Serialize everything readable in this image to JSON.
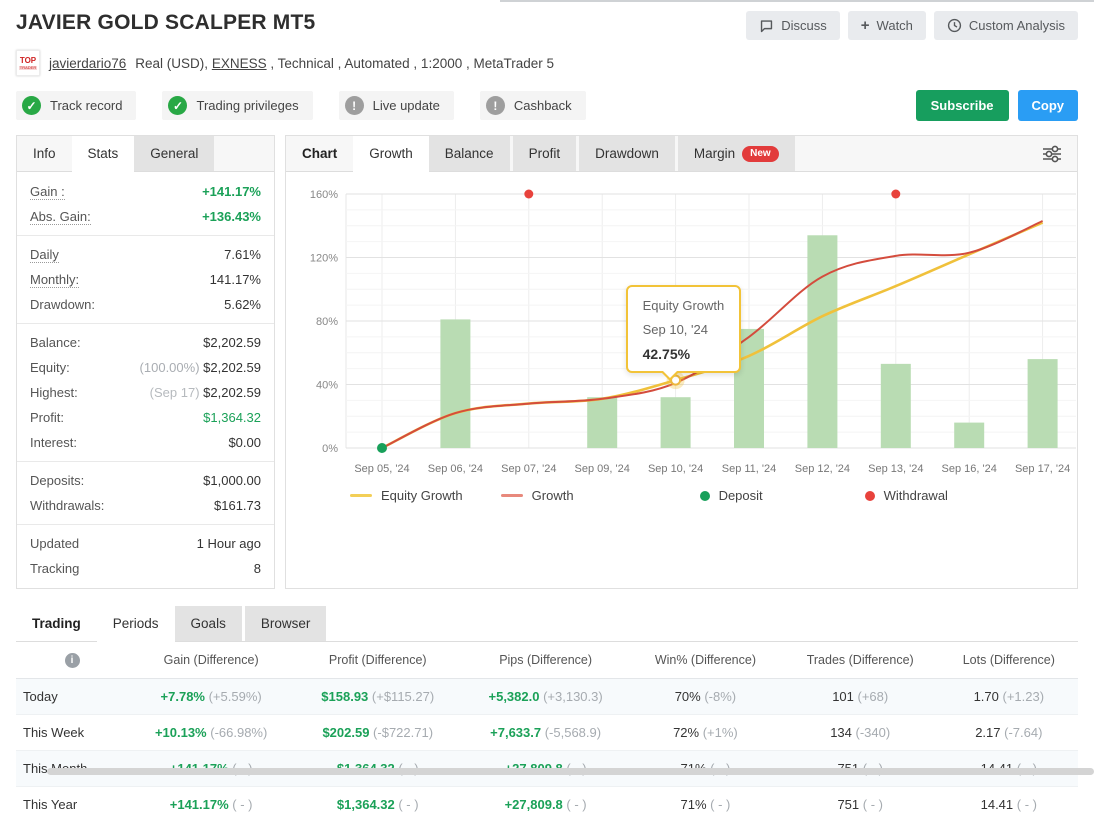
{
  "header": {
    "title": "JAVIER GOLD SCALPER MT5",
    "actions": [
      {
        "label": "Discuss",
        "icon": "discuss-icon"
      },
      {
        "label": "Watch",
        "icon": "plus-icon"
      },
      {
        "label": "Custom Analysis",
        "icon": "clock-icon"
      }
    ],
    "account": {
      "top_badge": "TOP",
      "username": "javierdario76",
      "details_prefix": "Real (USD), ",
      "broker": "EXNESS",
      "details_suffix": " , Technical , Automated , 1:2000 , MetaTrader 5"
    },
    "badges": [
      {
        "label": "Track record",
        "status": "ok"
      },
      {
        "label": "Trading privileges",
        "status": "ok"
      },
      {
        "label": "Live update",
        "status": "info"
      },
      {
        "label": "Cashback",
        "status": "info"
      }
    ],
    "subscribe_label": "Subscribe",
    "copy_label": "Copy"
  },
  "sidebar": {
    "tabs": [
      "Info",
      "Stats",
      "General"
    ],
    "active_tab": "Stats",
    "stats": {
      "gain_label": "Gain :",
      "gain": "+141.17%",
      "abs_gain_label": "Abs. Gain:",
      "abs_gain": "+136.43%",
      "daily_label": "Daily",
      "daily": "7.61%",
      "monthly_label": "Monthly:",
      "monthly": "141.17%",
      "drawdown_label": "Drawdown:",
      "drawdown": "5.62%",
      "balance_label": "Balance:",
      "balance": "$2,202.59",
      "equity_label": "Equity:",
      "equity_prefix": "(100.00%)",
      "equity": "$2,202.59",
      "highest_label": "Highest:",
      "highest_prefix": "(Sep 17)",
      "highest": "$2,202.59",
      "profit_label": "Profit:",
      "profit": "$1,364.32",
      "interest_label": "Interest:",
      "interest": "$0.00",
      "deposits_label": "Deposits:",
      "deposits": "$1,000.00",
      "withdrawals_label": "Withdrawals:",
      "withdrawals": "$161.73",
      "updated_label": "Updated",
      "updated": "1 Hour ago",
      "tracking_label": "Tracking",
      "tracking": "8"
    }
  },
  "chart_panel": {
    "label_tab": "Chart",
    "tabs": [
      "Growth",
      "Balance",
      "Profit",
      "Drawdown",
      "Margin"
    ],
    "active_tab": "Growth",
    "new_badge": "New"
  },
  "chart_data": {
    "type": "line+bar",
    "title": "Growth",
    "x": [
      "Sep 05, '24",
      "Sep 06, '24",
      "Sep 07, '24",
      "Sep 09, '24",
      "Sep 10, '24",
      "Sep 11, '24",
      "Sep 12, '24",
      "Sep 13, '24",
      "Sep 16, '24",
      "Sep 17, '24"
    ],
    "ylim": [
      0,
      160
    ],
    "ytick_step": 40,
    "yminor_step": 10,
    "ytick_suffix": "%",
    "grid": true,
    "legend_position": "bottom",
    "series": [
      {
        "name": "Equity Growth",
        "type": "line",
        "color": "#f0c13b",
        "values": [
          0,
          22,
          28,
          31,
          42.75,
          58,
          83,
          102,
          122,
          142
        ]
      },
      {
        "name": "Growth",
        "type": "line",
        "color": "#d44c3d",
        "values": [
          0,
          22,
          28,
          31,
          41,
          70,
          108,
          121,
          123,
          143
        ]
      },
      {
        "name": "Daily bars",
        "type": "bar",
        "color": "#b9dcb3",
        "values": [
          null,
          81,
          null,
          32,
          32,
          75,
          134,
          53,
          16,
          56
        ]
      },
      {
        "name": "Deposit",
        "type": "points",
        "color": "#18a05a",
        "points": [
          {
            "xi": 0,
            "y": 0
          }
        ]
      },
      {
        "name": "Withdrawal",
        "type": "points",
        "color": "#e8423c",
        "points": [
          {
            "xi": 2,
            "y": 160
          },
          {
            "xi": 7,
            "y": 160
          }
        ]
      }
    ],
    "legend": [
      {
        "label": "Equity Growth",
        "swatch": "line",
        "color": "#f3cf57"
      },
      {
        "label": "Growth",
        "swatch": "line",
        "color": "#e8897c"
      },
      {
        "label": "Deposit",
        "swatch": "dot",
        "color": "#18a05a"
      },
      {
        "label": "Withdrawal",
        "swatch": "dot",
        "color": "#e8423c"
      }
    ],
    "tooltip": {
      "series": "Equity Growth",
      "x": "Sep 10, '24",
      "value": "42.75%",
      "xi": 4,
      "y": 42.75
    }
  },
  "bottom": {
    "label_tab": "Trading",
    "tabs": [
      "Periods",
      "Goals",
      "Browser"
    ],
    "active_tab": "Periods",
    "table": {
      "columns": [
        "Gain (Difference)",
        "Profit (Difference)",
        "Pips (Difference)",
        "Win% (Difference)",
        "Trades (Difference)",
        "Lots (Difference)"
      ],
      "rows": [
        {
          "label": "Today",
          "cells": [
            {
              "main": "+7.78%",
              "diff": "(+5.59%)",
              "green": true
            },
            {
              "main": "$158.93",
              "diff": "(+$115.27)",
              "green": true
            },
            {
              "main": "+5,382.0",
              "diff": "(+3,130.3)",
              "green": true
            },
            {
              "main": "70%",
              "diff": "(-8%)"
            },
            {
              "main": "101",
              "diff": "(+68)"
            },
            {
              "main": "1.70",
              "diff": "(+1.23)"
            }
          ]
        },
        {
          "label": "This Week",
          "cells": [
            {
              "main": "+10.13%",
              "diff": "(-66.98%)",
              "green": true
            },
            {
              "main": "$202.59",
              "diff": "(-$722.71)",
              "green": true
            },
            {
              "main": "+7,633.7",
              "diff": "(-5,568.9)",
              "green": true
            },
            {
              "main": "72%",
              "diff": "(+1%)"
            },
            {
              "main": "134",
              "diff": "(-340)"
            },
            {
              "main": "2.17",
              "diff": "(-7.64)"
            }
          ]
        },
        {
          "label": "This Month",
          "cells": [
            {
              "main": "+141.17%",
              "diff": "( - )",
              "green": true
            },
            {
              "main": "$1,364.32",
              "diff": "( - )",
              "green": true
            },
            {
              "main": "+27,809.8",
              "diff": "( - )",
              "green": true
            },
            {
              "main": "71%",
              "diff": "( - )"
            },
            {
              "main": "751",
              "diff": "( - )"
            },
            {
              "main": "14.41",
              "diff": "( - )"
            }
          ]
        },
        {
          "label": "This Year",
          "cells": [
            {
              "main": "+141.17%",
              "diff": "( - )",
              "green": true
            },
            {
              "main": "$1,364.32",
              "diff": "( - )",
              "green": true
            },
            {
              "main": "+27,809.8",
              "diff": "( - )",
              "green": true
            },
            {
              "main": "71%",
              "diff": "( - )"
            },
            {
              "main": "751",
              "diff": "( - )"
            },
            {
              "main": "14.41",
              "diff": "( - )"
            }
          ]
        }
      ]
    }
  },
  "colors": {
    "positive_green": "#1ba158",
    "subscribe_green": "#179e5e",
    "copy_blue": "#2a9df4",
    "new_badge_red": "#e23b3b",
    "bar_green": "#b9dcb3",
    "equity_line": "#f0c13b",
    "growth_line": "#d44c3d",
    "deposit_dot": "#18a05a",
    "withdrawal_dot": "#e8423c"
  }
}
